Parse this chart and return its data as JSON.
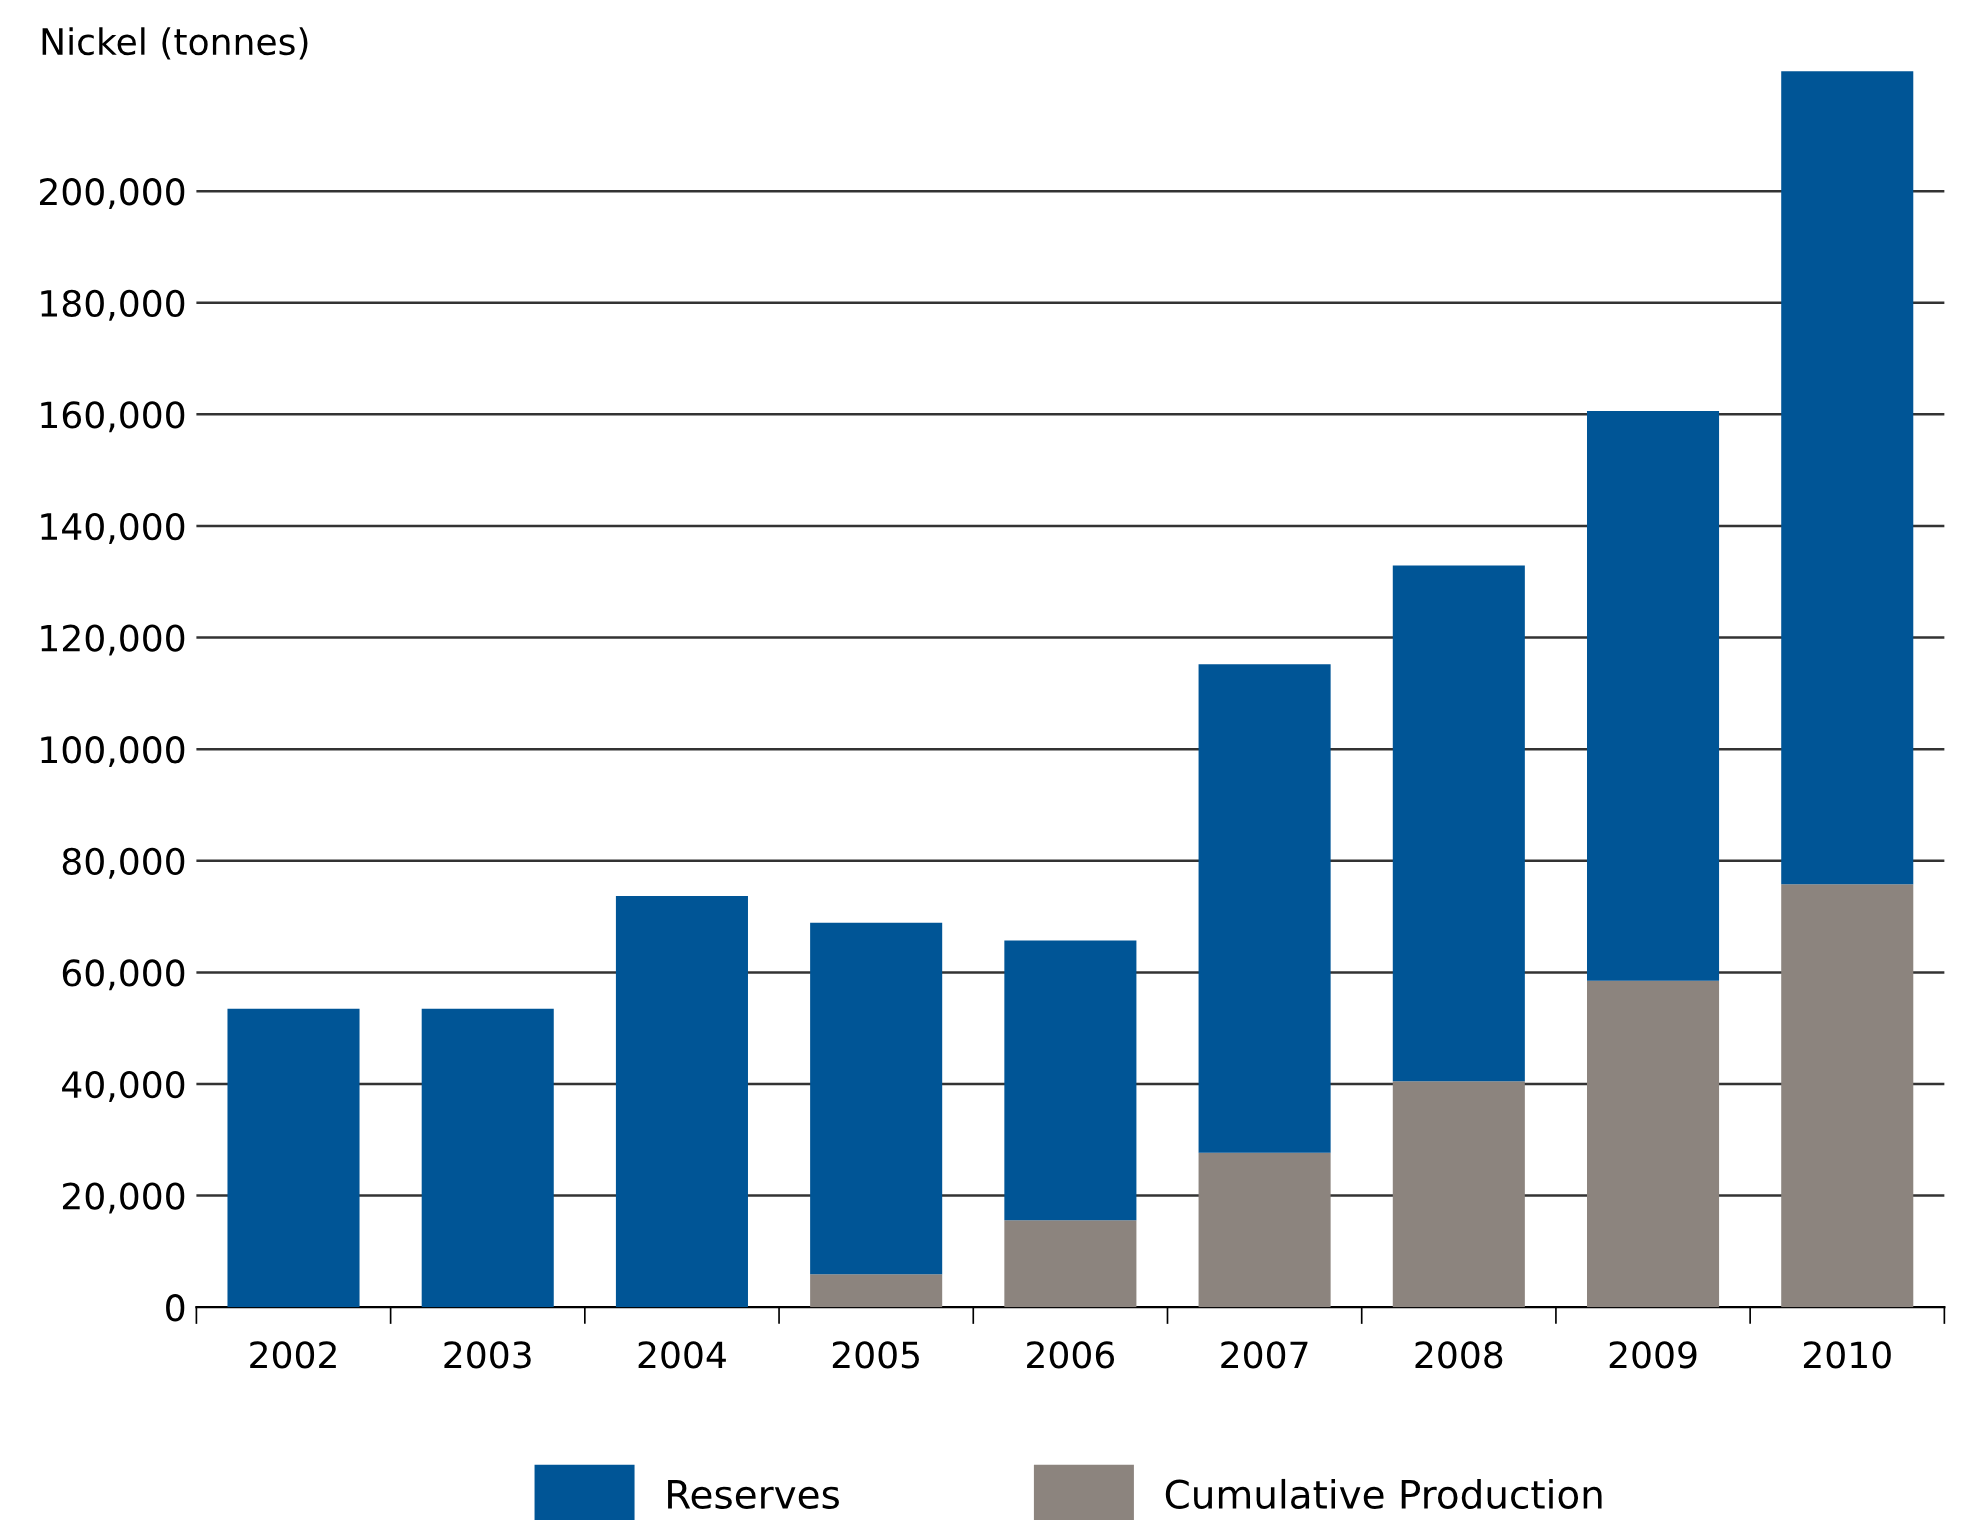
{
  "chart_data": {
    "type": "bar",
    "stacked": true,
    "ylabel": "Nickel (tonnes)",
    "categories": [
      "2002",
      "2003",
      "2004",
      "2005",
      "2006",
      "2007",
      "2008",
      "2009",
      "2010"
    ],
    "series": [
      {
        "name": "Cumulative Production",
        "color": "#8c847e",
        "values": [
          0,
          0,
          0,
          5900,
          15600,
          27700,
          40500,
          58500,
          75800
        ]
      },
      {
        "name": "Reserves",
        "color": "#005596",
        "values": [
          53500,
          53500,
          73700,
          63000,
          50100,
          87500,
          92400,
          102100,
          145700
        ]
      }
    ],
    "ylim": [
      0,
      222000
    ],
    "yticks": [
      0,
      {
        "value": 20000,
        "label": "20,000"
      },
      {
        "value": 40000,
        "label": "40,000"
      },
      {
        "value": 60000,
        "label": "60,000"
      },
      {
        "value": 80000,
        "label": "80,000"
      },
      {
        "value": 100000,
        "label": "100,000"
      },
      {
        "value": 120000,
        "label": "120,000"
      },
      {
        "value": 140000,
        "label": "140,000"
      },
      {
        "value": 160000,
        "label": "160,000"
      },
      {
        "value": 180000,
        "label": "180,000"
      },
      {
        "value": 200000,
        "label": "200,000"
      }
    ],
    "grid": "y",
    "legend": "bottom"
  }
}
